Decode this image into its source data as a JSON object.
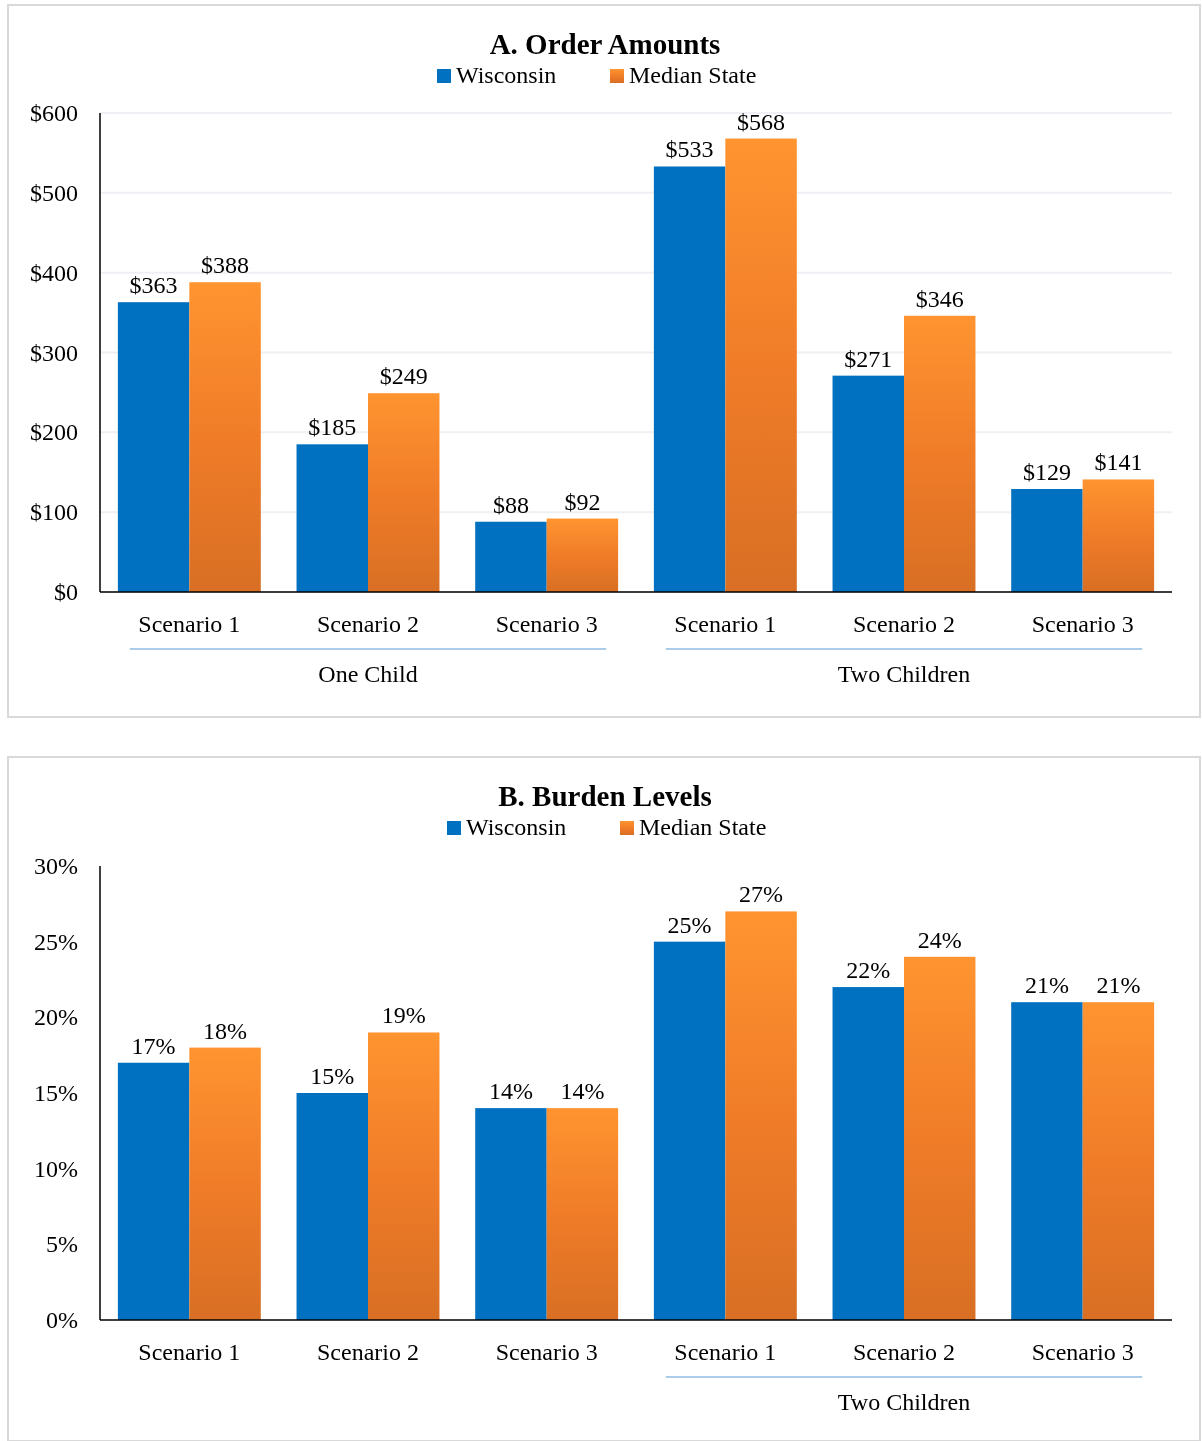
{
  "chart_data": [
    {
      "type": "bar",
      "title": "A. Order Amounts",
      "categories": [
        "Scenario 1",
        "Scenario 2",
        "Scenario 3",
        "Scenario 1",
        "Scenario 2",
        "Scenario 3"
      ],
      "series": [
        {
          "name": "Wisconsin",
          "color": "#0070c0",
          "values": [
            363,
            185,
            88,
            533,
            271,
            129
          ],
          "value_labels": [
            "$363",
            "$185",
            "$88",
            "$533",
            "$271",
            "$129"
          ]
        },
        {
          "name": "Median State",
          "color": "#f07c28",
          "values": [
            388,
            249,
            92,
            568,
            346,
            141
          ],
          "value_labels": [
            "$388",
            "$249",
            "$92",
            "$568",
            "$346",
            "$141"
          ]
        }
      ],
      "ylim": [
        0,
        600
      ],
      "yticks": [
        {
          "value": 0,
          "label": "$0"
        },
        {
          "value": 100,
          "label": "$100"
        },
        {
          "value": 200,
          "label": "$200"
        },
        {
          "value": 300,
          "label": "$300"
        },
        {
          "value": 400,
          "label": "$400"
        },
        {
          "value": 500,
          "label": "$500"
        },
        {
          "value": 600,
          "label": "$600"
        }
      ],
      "grid": "y",
      "legend": "top",
      "annotations": [
        "One Child",
        "Two Children"
      ]
    },
    {
      "type": "bar",
      "title": "B. Burden Levels",
      "categories": [
        "Scenario 1",
        "Scenario 2",
        "Scenario 3",
        "Scenario 1",
        "Scenario 2",
        "Scenario 3"
      ],
      "series": [
        {
          "name": "Wisconsin",
          "color": "#0070c0",
          "values": [
            17,
            15,
            14,
            25,
            22,
            21
          ],
          "value_labels": [
            "17%",
            "15%",
            "14%",
            "25%",
            "22%",
            "21%"
          ]
        },
        {
          "name": "Median State",
          "color": "#f07c28",
          "values": [
            18,
            19,
            14,
            27,
            24,
            21
          ],
          "value_labels": [
            "18%",
            "19%",
            "14%",
            "27%",
            "24%",
            "21%"
          ]
        }
      ],
      "ylim": [
        0,
        30
      ],
      "yticks": [
        {
          "value": 0,
          "label": "0%"
        },
        {
          "value": 5,
          "label": "5%"
        },
        {
          "value": 10,
          "label": "10%"
        },
        {
          "value": 15,
          "label": "15%"
        },
        {
          "value": 20,
          "label": "20%"
        },
        {
          "value": 25,
          "label": "25%"
        },
        {
          "value": 30,
          "label": "30%"
        }
      ],
      "grid": false,
      "legend": "top",
      "annotations": [
        "Two Children"
      ]
    }
  ]
}
